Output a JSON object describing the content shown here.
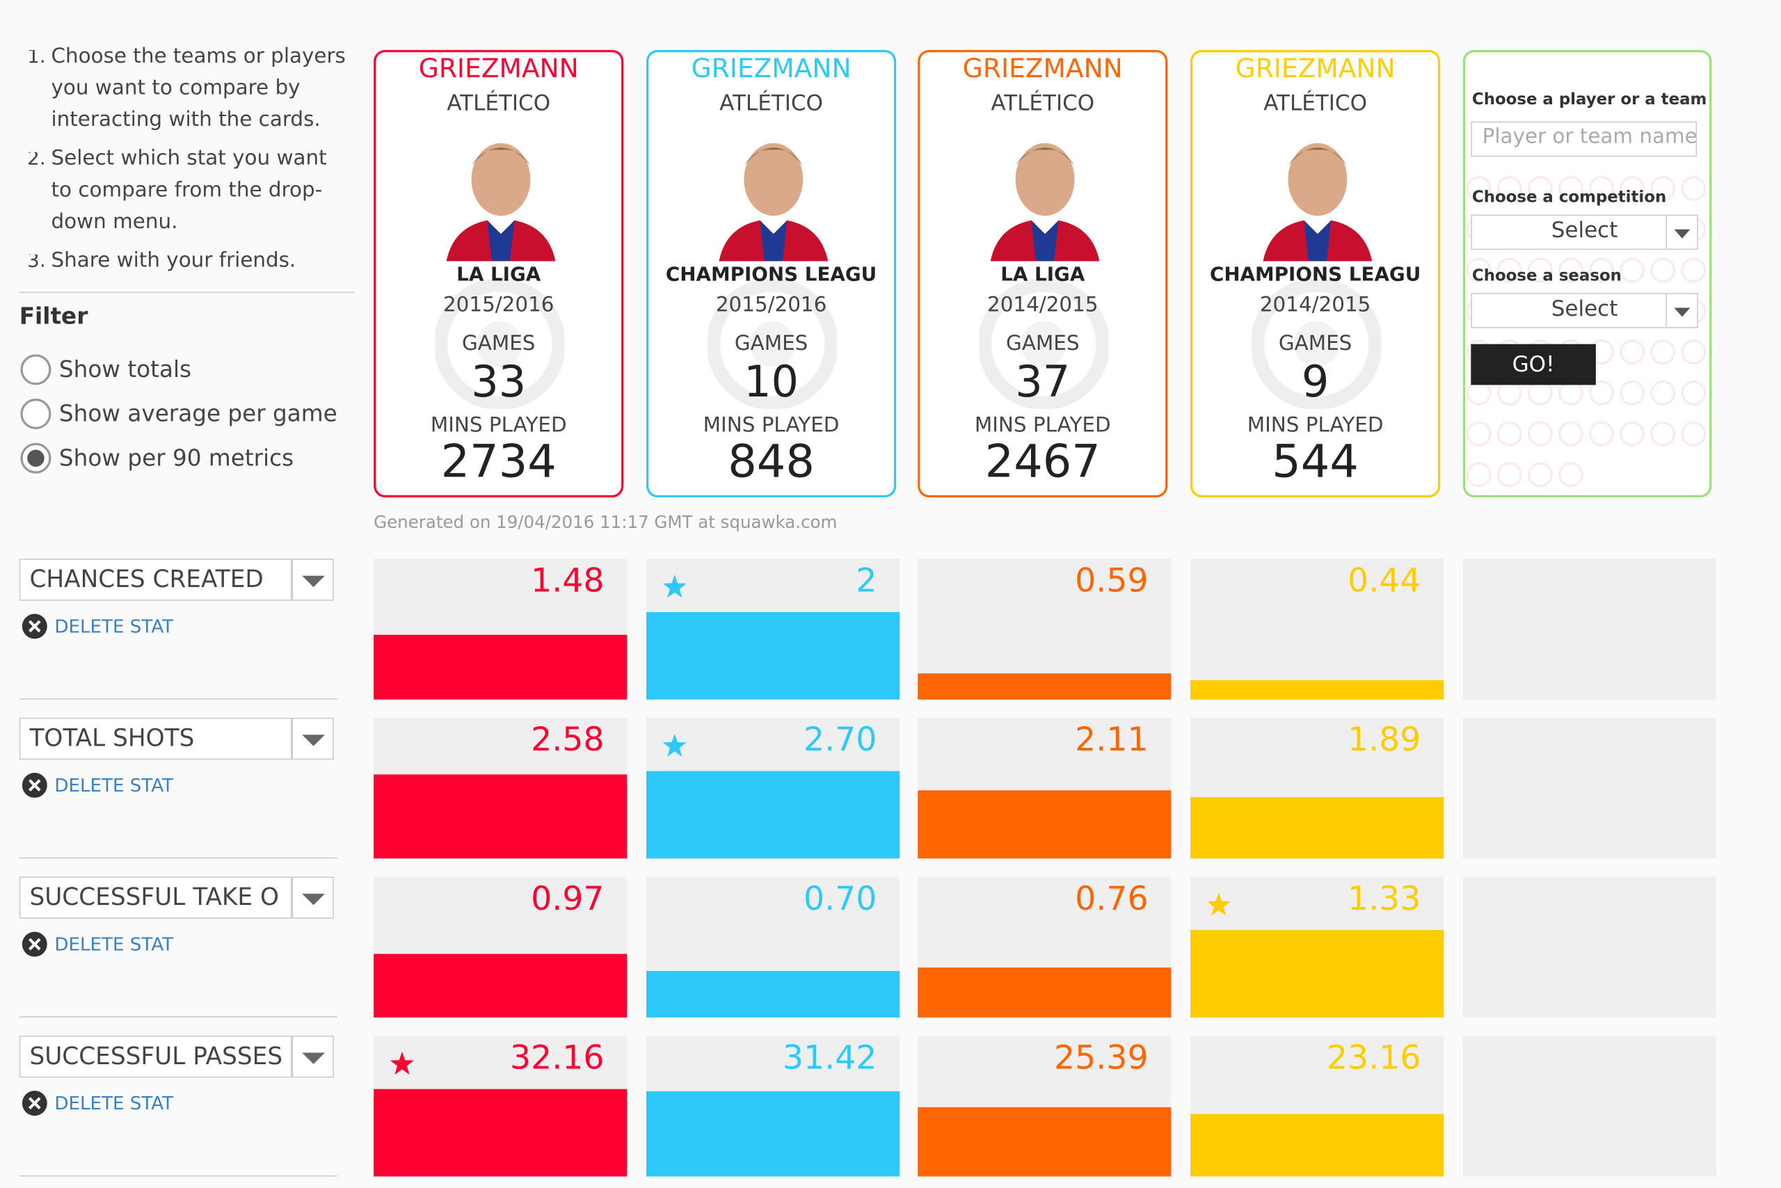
{
  "instructions": [
    "Choose the teams or players you want to compare by interacting with the cards.",
    "Select which stat you want to compare from the drop-down menu.",
    "Share with your friends."
  ],
  "filter": {
    "title": "Filter",
    "options": [
      "Show totals",
      "Show average per game",
      "Show per 90 metrics"
    ],
    "selected": 2
  },
  "cards": [
    {
      "name": "GRIEZMANN",
      "club": "ATLÉTICO",
      "competition": "LA LIGA",
      "season": "2015/2016",
      "games_label": "GAMES",
      "games": 33,
      "mins_label": "MINS PLAYED",
      "mins": 2734,
      "color": "#ff0033"
    },
    {
      "name": "GRIEZMANN",
      "club": "ATLÉTICO",
      "competition": "CHAMPIONS LEAGU",
      "season": "2015/2016",
      "games_label": "GAMES",
      "games": 10,
      "mins_label": "MINS PLAYED",
      "mins": 848,
      "color": "#2ec9f8"
    },
    {
      "name": "GRIEZMANN",
      "club": "ATLÉTICO",
      "competition": "LA LIGA",
      "season": "2014/2015",
      "games_label": "GAMES",
      "games": 37,
      "mins_label": "MINS PLAYED",
      "mins": 2467,
      "color": "#ff6600"
    },
    {
      "name": "GRIEZMANN",
      "club": "ATLÉTICO",
      "competition": "CHAMPIONS LEAGU",
      "season": "2014/2015",
      "games_label": "GAMES",
      "games": 9,
      "mins_label": "MINS PLAYED",
      "mins": 544,
      "color": "#ffcc00"
    }
  ],
  "selector": {
    "player_label": "Choose a player or a team",
    "player_placeholder": "Player or team name",
    "competition_label": "Choose a competition",
    "competition_value": "Select",
    "season_label": "Choose a season",
    "season_value": "Select",
    "button": "GO!",
    "color": "#99e07a"
  },
  "generated": "Generated on 19/04/2016 11:17 GMT at squawka.com",
  "stats": [
    {
      "name": "CHANCES CREATED",
      "delete_label": "DELETE STAT",
      "values": [
        1.48,
        2,
        0.59,
        0.44
      ]
    },
    {
      "name": "TOTAL SHOTS",
      "delete_label": "DELETE STAT",
      "values": [
        2.58,
        2.7,
        2.11,
        1.89
      ],
      "value_labels": [
        "2.58",
        "2.70",
        "2.11",
        "1.89"
      ]
    },
    {
      "name": "SUCCESSFUL TAKE O",
      "delete_label": "DELETE STAT",
      "values": [
        0.97,
        0.7,
        0.76,
        1.33
      ],
      "value_labels": [
        "0.97",
        "0.70",
        "0.76",
        "1.33"
      ]
    },
    {
      "name": "SUCCESSFUL PASSES",
      "delete_label": "DELETE STAT",
      "values": [
        32.16,
        31.42,
        25.39,
        23.16
      ]
    }
  ]
}
